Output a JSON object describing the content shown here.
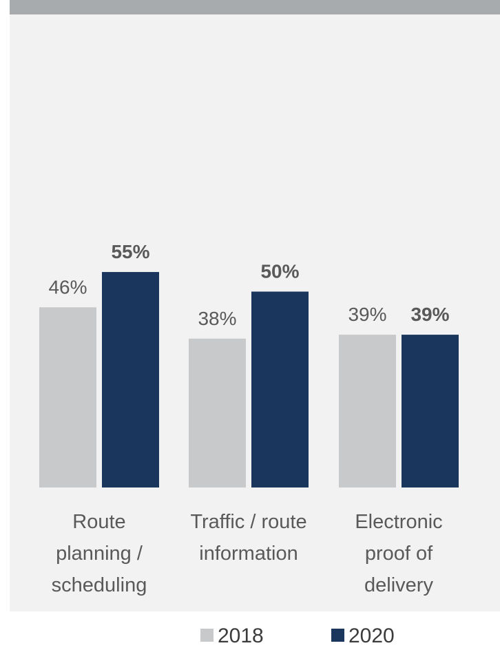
{
  "chart_data": {
    "type": "bar",
    "categories": [
      [
        "Route",
        "planning /",
        "scheduling"
      ],
      [
        "Traffic / route",
        "information"
      ],
      [
        "Electronic",
        "proof of",
        "delivery"
      ]
    ],
    "series": [
      {
        "name": "2018",
        "values": [
          46,
          38,
          39
        ],
        "color": "#c8c9cb",
        "label_color": "#595959",
        "label_bold": false
      },
      {
        "name": "2020",
        "values": [
          55,
          50,
          39
        ],
        "color": "#1a365d",
        "label_color": "#595959",
        "label_bold": true
      }
    ],
    "value_suffix": "%",
    "ylim": [
      0,
      100
    ],
    "title": "",
    "xlabel": "",
    "ylabel": "",
    "grid": false,
    "legend": "bottom"
  }
}
